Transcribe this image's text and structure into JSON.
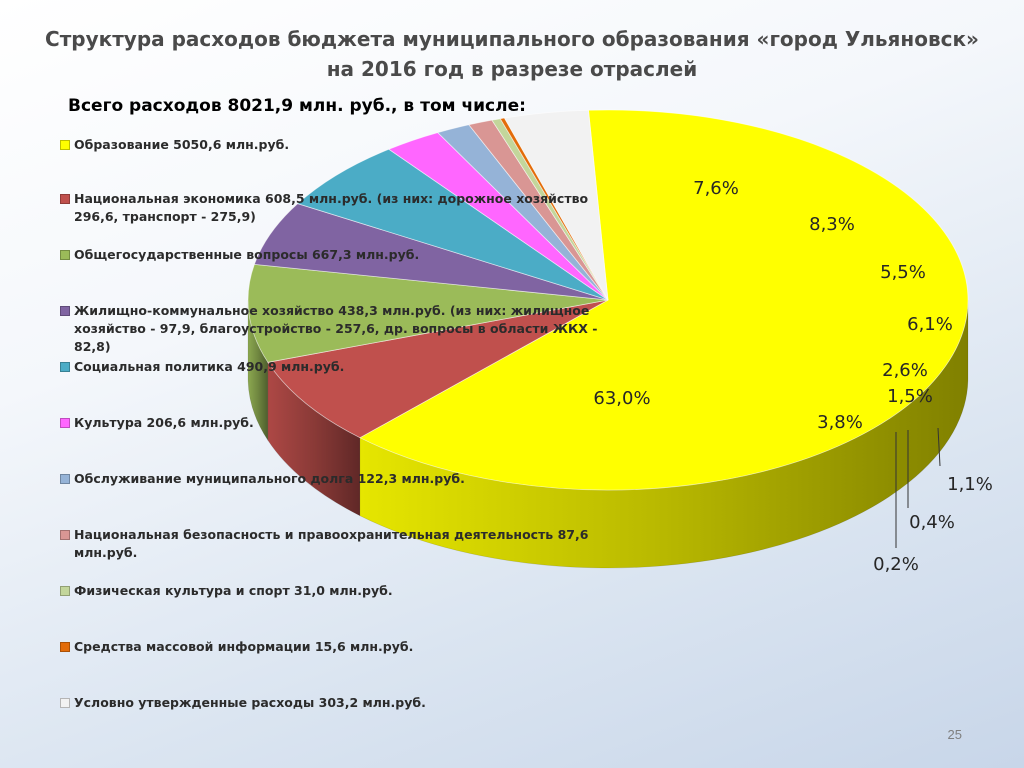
{
  "slide": {
    "title": "Структура расходов бюджета муниципального образования «город Ульяновск»",
    "title_line2": "на 2016 год в разрезе отраслей",
    "subtitle": "Всего расходов 8021,9 млн. руб., в том числе:",
    "page_number": "25"
  },
  "chart_data": {
    "type": "pie",
    "title": "Структура расходов бюджета муниципального образования «город Ульяновск» на 2016 год в разрезе отраслей",
    "total": "8021,9 млн. руб.",
    "legend_placement": "left",
    "series": [
      {
        "legend": "Образование 5050,6 млн.руб.",
        "value": 5050.6,
        "pct": 63.0,
        "pct_label": "63,0%",
        "color": "#ffff00"
      },
      {
        "legend": "Национальная экономика 608,5 млн.руб. (из них: дорожное хозяйство 296,6, транспорт - 275,9)",
        "value": 608.5,
        "pct": 7.6,
        "pct_label": "7,6%",
        "color": "#c0504d"
      },
      {
        "legend": "Общегосударственные вопросы 667,3 млн.руб.",
        "value": 667.3,
        "pct": 8.3,
        "pct_label": "8,3%",
        "color": "#9bbb59"
      },
      {
        "legend": "Жилищно-коммунальное хозяйство 438,3 млн.руб. (из них: жилищное хозяйство - 97,9, благоустройство - 257,6, др. вопросы в области ЖКХ - 82,8)",
        "value": 438.3,
        "pct": 5.5,
        "pct_label": "5,5%",
        "color": "#8064a2"
      },
      {
        "legend": "Социальная политика 490,9 млн.руб.",
        "value": 490.9,
        "pct": 6.1,
        "pct_label": "6,1%",
        "color": "#4bacc6"
      },
      {
        "legend": "Культура 206,6 млн.руб.",
        "value": 206.6,
        "pct": 2.6,
        "pct_label": "2,6%",
        "color": "#ff66ff"
      },
      {
        "legend": "Обслуживание муниципального долга 122,3 млн.руб.",
        "value": 122.3,
        "pct": 1.5,
        "pct_label": "1,5%",
        "color": "#95b3d7"
      },
      {
        "legend": "Национальная безопасность и правоохранительная деятельность 87,6 млн.руб.",
        "value": 87.6,
        "pct": 1.1,
        "pct_label": "1,1%",
        "color": "#d99694"
      },
      {
        "legend": "Физическая культура и спорт 31,0 млн.руб.",
        "value": 31.0,
        "pct": 0.4,
        "pct_label": "0,4%",
        "color": "#c3d69b"
      },
      {
        "legend": "Средства массовой информации 15,6 млн.руб.",
        "value": 15.6,
        "pct": 0.2,
        "pct_label": "0,2%",
        "color": "#e36c09"
      },
      {
        "legend": "Условно утвержденные расходы 303,2 млн.руб.",
        "value": 303.2,
        "pct": 3.8,
        "pct_label": "3,8%",
        "color": "#f2f2f2"
      }
    ]
  }
}
